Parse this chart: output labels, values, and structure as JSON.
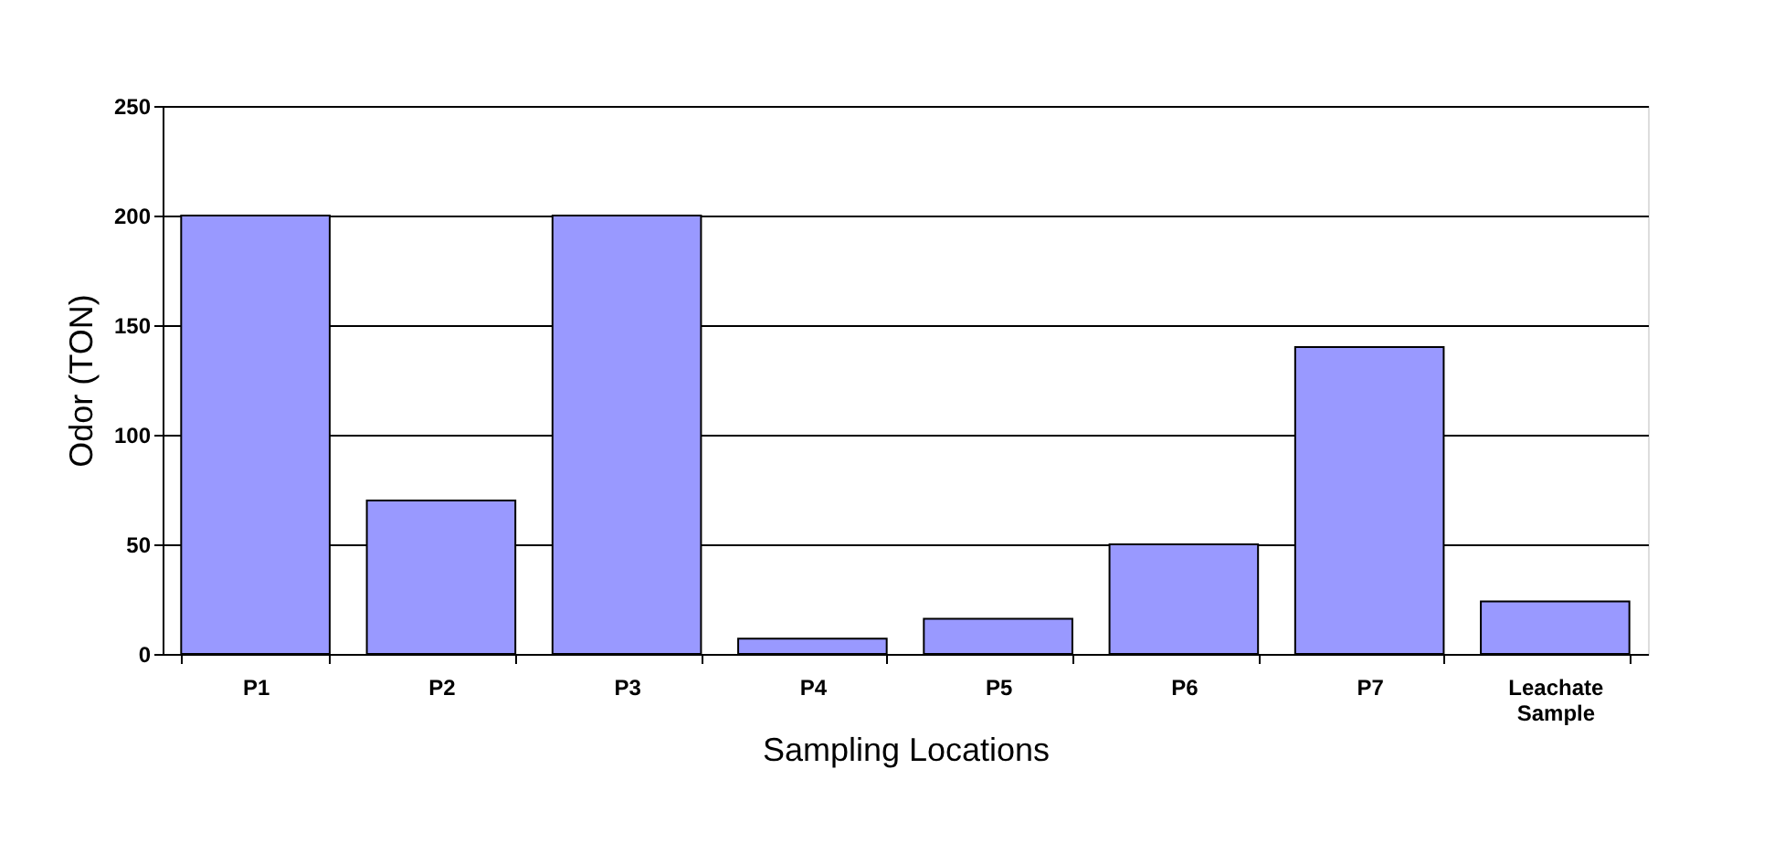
{
  "chart_data": {
    "type": "bar",
    "xlabel": "Sampling Locations",
    "ylabel": "Odor (TON)",
    "categories": [
      "P1",
      "P2",
      "P3",
      "P4",
      "P5",
      "P6",
      "P7",
      "Leachate Sample"
    ],
    "values": [
      200,
      70,
      200,
      7,
      16,
      50,
      140,
      24
    ],
    "color": "#9999ff",
    "ylim": [
      0,
      250
    ],
    "yticks": [
      0,
      50,
      100,
      150,
      200,
      250
    ],
    "grid": "y"
  }
}
